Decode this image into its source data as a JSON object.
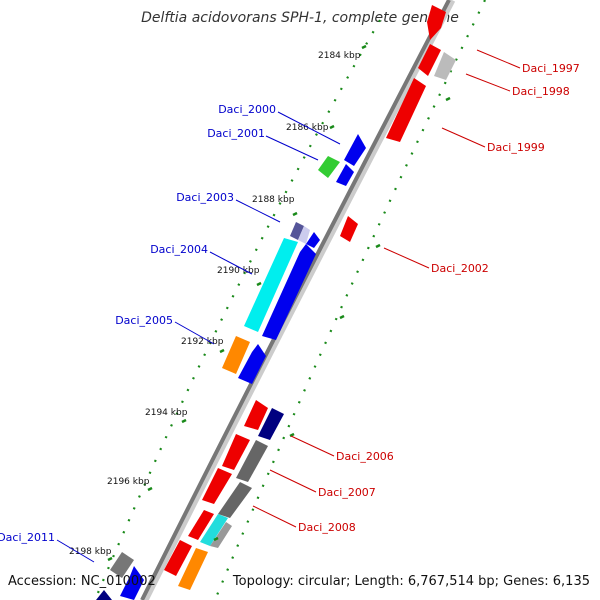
{
  "title": "Delftia acidovorans SPH-1, complete genome",
  "footer": {
    "accession": "Accession: NC_010002",
    "topology": "Topology: circular; Length: 6,767,514 bp; Genes: 6,135"
  },
  "colors": {
    "plus_strand_label": "#0000cc",
    "minus_strand_label": "#cc0000",
    "backbone": "#888888",
    "tick_green": "#1a8a1a"
  },
  "ticks": [
    "2184 kbp",
    "2186 kbp",
    "2188 kbp",
    "2190 kbp",
    "2192 kbp",
    "2194 kbp",
    "2196 kbp",
    "2198 kbp"
  ],
  "genes": [
    {
      "id": "Daci_1997",
      "strand": "minus"
    },
    {
      "id": "Daci_1998",
      "strand": "minus"
    },
    {
      "id": "Daci_1999",
      "strand": "minus"
    },
    {
      "id": "Daci_2000",
      "strand": "plus"
    },
    {
      "id": "Daci_2001",
      "strand": "plus"
    },
    {
      "id": "Daci_2002",
      "strand": "minus"
    },
    {
      "id": "Daci_2003",
      "strand": "plus"
    },
    {
      "id": "Daci_2004",
      "strand": "plus"
    },
    {
      "id": "Daci_2005",
      "strand": "plus"
    },
    {
      "id": "Daci_2006",
      "strand": "minus"
    },
    {
      "id": "Daci_2007",
      "strand": "minus"
    },
    {
      "id": "Daci_2008",
      "strand": "minus"
    },
    {
      "id": "Daci_2011",
      "strand": "plus"
    }
  ]
}
